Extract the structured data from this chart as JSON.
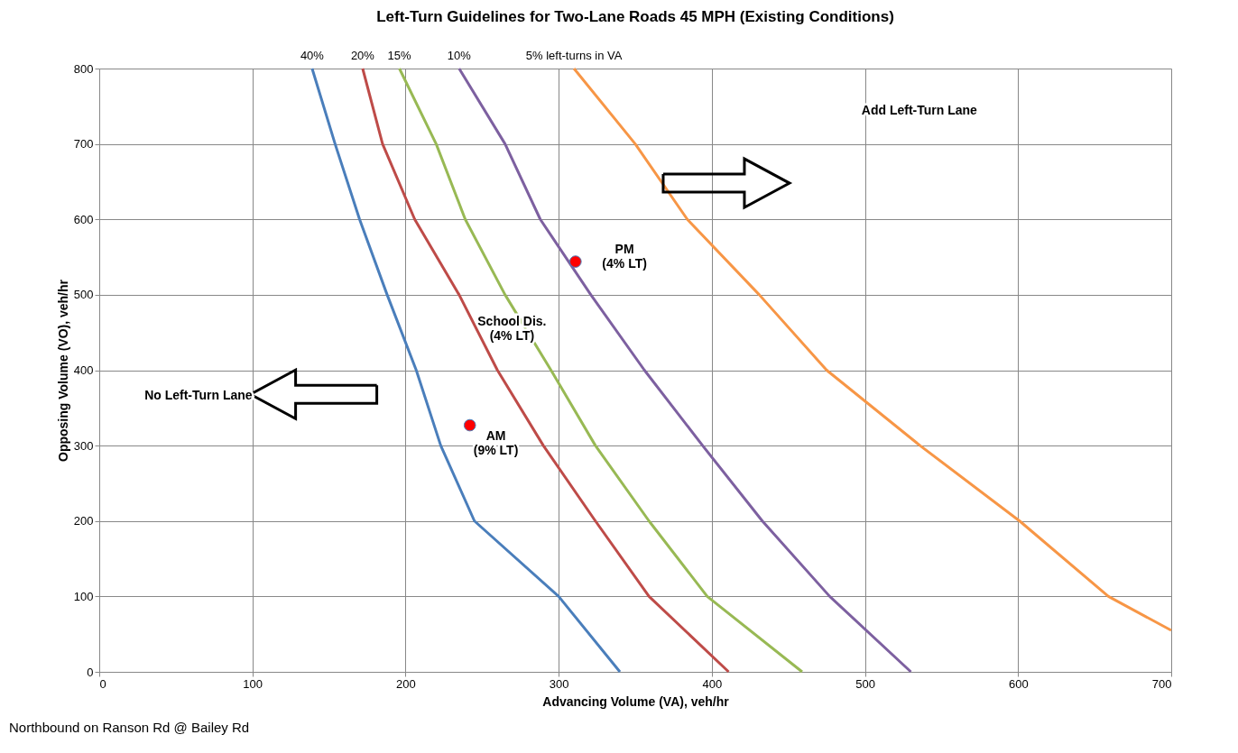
{
  "chart_data": {
    "type": "line",
    "title": "Left-Turn Guidelines for Two-Lane Roads 45 MPH (Existing Conditions)",
    "xlabel": "Advancing Volume (VA), veh/hr",
    "ylabel": "Opposing Volume (VO), veh/hr",
    "xlim": [
      0,
      700
    ],
    "xticks": [
      0,
      100,
      200,
      300,
      400,
      500,
      600,
      700
    ],
    "ylim": [
      0,
      800
    ],
    "yticks": [
      0,
      100,
      200,
      300,
      400,
      500,
      600,
      700,
      800
    ],
    "grid": true,
    "legend": false,
    "marker": "none",
    "line_style": "solid",
    "series": [
      {
        "name": "40%",
        "color": "#4a7ebb",
        "x": [
          139,
          154,
          170,
          188,
          207,
          223,
          245,
          300,
          340
        ],
        "values": [
          800,
          700,
          600,
          500,
          400,
          300,
          200,
          100,
          0
        ]
      },
      {
        "name": "20%",
        "color": "#be4b48",
        "x": [
          172,
          185,
          206,
          235,
          260,
          290,
          324,
          359,
          411
        ],
        "values": [
          800,
          700,
          600,
          500,
          400,
          300,
          200,
          100,
          0
        ]
      },
      {
        "name": "15%",
        "color": "#98b954",
        "x": [
          196,
          220,
          239,
          265,
          295,
          324,
          359,
          397,
          459
        ],
        "values": [
          800,
          700,
          600,
          500,
          400,
          300,
          200,
          100,
          0
        ]
      },
      {
        "name": "10%",
        "color": "#7d60a0",
        "x": [
          235,
          265,
          288,
          321,
          356,
          394,
          433,
          477,
          530
        ],
        "values": [
          800,
          700,
          600,
          500,
          400,
          300,
          200,
          100,
          0
        ]
      },
      {
        "name": "5% left-turns in VA",
        "color": "#f79646",
        "x": [
          310,
          350,
          384,
          431,
          475,
          536,
          601,
          659,
          700
        ],
        "values": [
          800,
          700,
          600,
          500,
          400,
          300,
          200,
          100,
          55
        ]
      },
      {
        "type": "scatter",
        "marker": "circle",
        "color": "#ff0000",
        "x": [
          311,
          242
        ],
        "values": [
          544,
          327
        ]
      }
    ],
    "annotations": [
      "PM\n(4% LT)",
      "AM\n(9% LT)",
      "School Dis.\n(4% LT)",
      "Add Left-Turn Lane",
      "No Left-Turn Lane",
      "Northbound on Ranson Rd @ Bailey Rd"
    ]
  }
}
